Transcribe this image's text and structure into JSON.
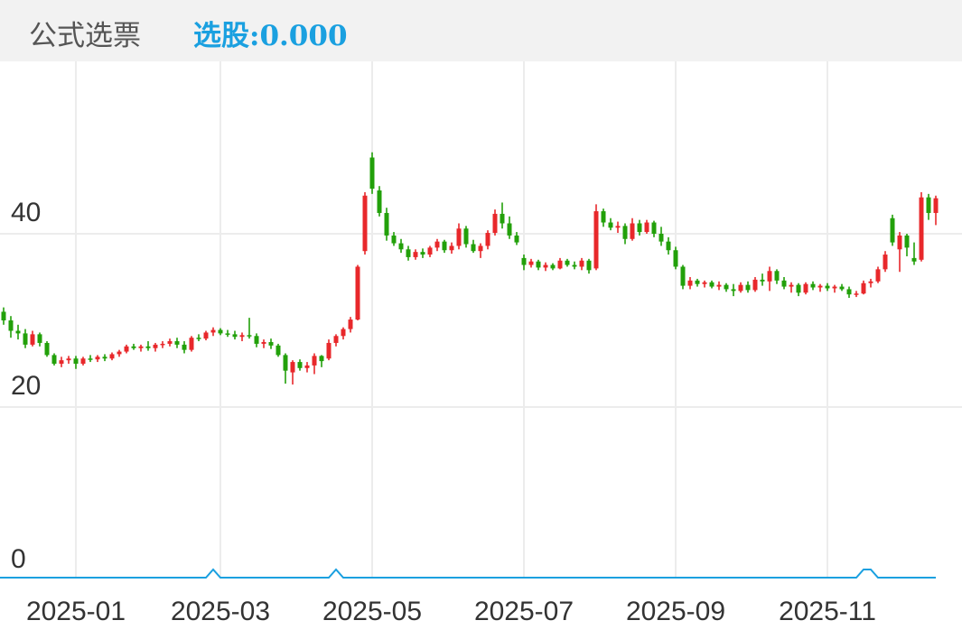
{
  "header": {
    "title": "公式选票",
    "indicator": "选股:0.000"
  },
  "chart_data": {
    "type": "candlestick",
    "up_color": "#e8282b",
    "down_color": "#22a00a",
    "signal_color": "#1aa0e0",
    "ylim": [
      0,
      60
    ],
    "yticks": [
      0,
      20,
      40
    ],
    "grid": true,
    "categories": [
      null,
      null,
      null,
      null,
      null,
      null,
      null,
      null,
      null,
      null,
      "2025-01",
      null,
      null,
      null,
      null,
      null,
      null,
      null,
      null,
      null,
      null,
      null,
      null,
      null,
      null,
      null,
      null,
      null,
      null,
      null,
      "2025-03",
      null,
      null,
      null,
      null,
      null,
      null,
      null,
      null,
      null,
      null,
      null,
      null,
      null,
      null,
      null,
      null,
      null,
      null,
      null,
      null,
      "2025-05",
      null,
      null,
      null,
      null,
      null,
      null,
      null,
      null,
      null,
      null,
      null,
      null,
      null,
      null,
      null,
      null,
      null,
      null,
      null,
      null,
      "2025-07",
      null,
      null,
      null,
      null,
      null,
      null,
      null,
      null,
      null,
      null,
      null,
      null,
      null,
      null,
      null,
      null,
      null,
      null,
      null,
      null,
      "2025-09",
      null,
      null,
      null,
      null,
      null,
      null,
      null,
      null,
      null,
      null,
      null,
      null,
      null,
      null,
      null,
      null,
      null,
      null,
      null,
      null,
      "2025-11",
      null,
      null,
      null,
      null,
      null,
      null,
      null,
      null,
      null,
      null,
      null,
      null,
      null,
      null,
      null
    ],
    "candles": [
      [
        31,
        31.5,
        29.5,
        30
      ],
      [
        30,
        30.5,
        28,
        28.8
      ],
      [
        28.8,
        29.5,
        27.8,
        28.5
      ],
      [
        28.5,
        29,
        26.8,
        27.2
      ],
      [
        27.2,
        28.8,
        27,
        28.4
      ],
      [
        28.4,
        28.6,
        27,
        27.4
      ],
      [
        27.4,
        27.6,
        25.8,
        26
      ],
      [
        26,
        26.2,
        24.8,
        25
      ],
      [
        25,
        25.8,
        24.6,
        25.4
      ],
      [
        25.4,
        25.9,
        25,
        25.6
      ],
      [
        25.6,
        25.9,
        24.4,
        25
      ],
      [
        25,
        25.8,
        24.8,
        25.6
      ],
      [
        25.6,
        26,
        25.2,
        25.5
      ],
      [
        25.5,
        26,
        25.2,
        25.8
      ],
      [
        25.8,
        26.1,
        25.3,
        25.6
      ],
      [
        25.6,
        26.3,
        25.4,
        26.1
      ],
      [
        26.1,
        26.6,
        25.8,
        26.4
      ],
      [
        26.4,
        27.2,
        26.2,
        27
      ],
      [
        27,
        27.3,
        26.6,
        26.8
      ],
      [
        26.8,
        27.2,
        26.4,
        27
      ],
      [
        27,
        27.6,
        26.5,
        26.8
      ],
      [
        26.8,
        27.4,
        26.4,
        27.2
      ],
      [
        27.2,
        27.6,
        26.8,
        27.3
      ],
      [
        27.3,
        27.9,
        27,
        27.6
      ],
      [
        27.6,
        28,
        26.8,
        27.2
      ],
      [
        27.2,
        27.6,
        26.2,
        26.6
      ],
      [
        26.6,
        28.2,
        26.4,
        28
      ],
      [
        28,
        28.4,
        27.6,
        27.9
      ],
      [
        27.9,
        28.8,
        27.7,
        28.6
      ],
      [
        28.6,
        29.2,
        28.2,
        28.9
      ],
      [
        28.9,
        29.1,
        28.3,
        28.5
      ],
      [
        28.5,
        28.9,
        28.1,
        28.4
      ],
      [
        28.4,
        28.8,
        27.8,
        28.1
      ],
      [
        28.1,
        28.6,
        27.6,
        28.3
      ],
      [
        28.3,
        30.3,
        27.9,
        28.2
      ],
      [
        28.2,
        28.5,
        26.9,
        27.3
      ],
      [
        27.3,
        27.8,
        26.8,
        27.5
      ],
      [
        27.5,
        27.9,
        26.7,
        27.1
      ],
      [
        27.1,
        27.3,
        25.8,
        26
      ],
      [
        26,
        26.2,
        22.7,
        24.2
      ],
      [
        24,
        25.4,
        22.6,
        25.2
      ],
      [
        25.2,
        25.5,
        24.2,
        24.5
      ],
      [
        24.5,
        25.2,
        24,
        24.8
      ],
      [
        24.8,
        26.2,
        23.8,
        25.9
      ],
      [
        25.9,
        26,
        24.6,
        25.3
      ],
      [
        25.6,
        27.8,
        25.4,
        27.4
      ],
      [
        27.4,
        28.4,
        27,
        28.2
      ],
      [
        28.2,
        29.2,
        27.8,
        29
      ],
      [
        29,
        30.4,
        28.6,
        30.1
      ],
      [
        30.1,
        36.4,
        30,
        36.2
      ],
      [
        38,
        44.8,
        37.6,
        44.4
      ],
      [
        48.8,
        49.4,
        44.6,
        45.2
      ],
      [
        45,
        45.5,
        42,
        42.4
      ],
      [
        42.4,
        43,
        39.2,
        39.8
      ],
      [
        39.8,
        40.2,
        38.6,
        38.9
      ],
      [
        38.9,
        39.4,
        37.8,
        38.2
      ],
      [
        38.2,
        38.6,
        36.9,
        37.3
      ],
      [
        37.3,
        38.2,
        37,
        37.9
      ],
      [
        37.9,
        38.3,
        37.2,
        37.6
      ],
      [
        37.6,
        38.6,
        37.3,
        38.4
      ],
      [
        38.4,
        39.4,
        38,
        39.1
      ],
      [
        39.1,
        39.3,
        37.8,
        38.1
      ],
      [
        38.1,
        39,
        37.7,
        38.6
      ],
      [
        38.6,
        41.2,
        38.2,
        40.6
      ],
      [
        40.6,
        40.9,
        38.4,
        38.8
      ],
      [
        38.8,
        39.3,
        37.8,
        38
      ],
      [
        38,
        38.9,
        37.2,
        38.6
      ],
      [
        38.6,
        40.4,
        38.2,
        40.1
      ],
      [
        40.1,
        42.8,
        39.8,
        42.3
      ],
      [
        42.3,
        43.6,
        40.6,
        41.2
      ],
      [
        41.2,
        42,
        39.4,
        39.8
      ],
      [
        39.8,
        40.2,
        38.7,
        39
      ],
      [
        37.2,
        37.6,
        35.8,
        36.4
      ],
      [
        36.4,
        37.1,
        36.1,
        36.8
      ],
      [
        36.8,
        37,
        35.8,
        36.1
      ],
      [
        36.1,
        36.7,
        35.7,
        36.4
      ],
      [
        36.4,
        36.6,
        35.8,
        36
      ],
      [
        36,
        37.2,
        35.9,
        36.9
      ],
      [
        36.9,
        37.1,
        36.2,
        36.4
      ],
      [
        36.4,
        36.8,
        35.9,
        36.2
      ],
      [
        36.2,
        37.2,
        35.8,
        36.9
      ],
      [
        36.9,
        37.1,
        35.4,
        35.8
      ],
      [
        36,
        43.4,
        35.8,
        42.6
      ],
      [
        42.6,
        42.9,
        40.8,
        41.3
      ],
      [
        41.3,
        41.8,
        40.4,
        40.7
      ],
      [
        40.7,
        41.4,
        40.1,
        40.9
      ],
      [
        40.9,
        41.2,
        38.8,
        39.4
      ],
      [
        39.4,
        41.8,
        39.2,
        41.2
      ],
      [
        41.2,
        41.6,
        39.8,
        40.2
      ],
      [
        40.2,
        41.6,
        40,
        41.3
      ],
      [
        41.3,
        41.5,
        39.6,
        40
      ],
      [
        40,
        40.8,
        38.6,
        39.1
      ],
      [
        39.1,
        39.6,
        37.6,
        38.1
      ],
      [
        38.1,
        38.5,
        35.9,
        36.2
      ],
      [
        36.2,
        36.4,
        33.6,
        34
      ],
      [
        34,
        35,
        33.6,
        34.6
      ],
      [
        34.6,
        34.8,
        33.9,
        34.2
      ],
      [
        34.2,
        34.6,
        33.8,
        34.4
      ],
      [
        34.4,
        34.6,
        33.7,
        33.9
      ],
      [
        33.9,
        34.5,
        33.5,
        34.1
      ],
      [
        34.1,
        34.3,
        33.3,
        33.6
      ],
      [
        33.6,
        34.2,
        32.8,
        33.4
      ],
      [
        33.4,
        34.4,
        33.2,
        34.1
      ],
      [
        34.1,
        34.5,
        33.2,
        33.5
      ],
      [
        33.5,
        35,
        33.3,
        34.7
      ],
      [
        34.7,
        35.4,
        34,
        34.5
      ],
      [
        34.5,
        36.2,
        33.4,
        35.7
      ],
      [
        35.7,
        35.9,
        34.2,
        34.6
      ],
      [
        34.6,
        35,
        33.6,
        33.9
      ],
      [
        33.9,
        34.4,
        33.2,
        34.1
      ],
      [
        34.1,
        34.3,
        32.8,
        33.2
      ],
      [
        33.2,
        34.4,
        33,
        34.2
      ],
      [
        34.2,
        34.5,
        33.5,
        33.8
      ],
      [
        33.8,
        34.2,
        33.3,
        34
      ],
      [
        34,
        34.3,
        33.4,
        33.7
      ],
      [
        33.7,
        34.1,
        33.2,
        33.9
      ],
      [
        33.9,
        34.2,
        33.4,
        33.6
      ],
      [
        33.6,
        33.9,
        32.6,
        33
      ],
      [
        33,
        33.4,
        32.7,
        33.1
      ],
      [
        33.1,
        34.6,
        33,
        34.3
      ],
      [
        34.3,
        34.8,
        33.8,
        34.5
      ],
      [
        34.5,
        36.2,
        34.3,
        35.9
      ],
      [
        35.9,
        38,
        35.6,
        37.6
      ],
      [
        41.8,
        42.2,
        38.6,
        39
      ],
      [
        38.2,
        40.2,
        35.6,
        39.8
      ],
      [
        39.8,
        40,
        37.4,
        38.4
      ],
      [
        37.2,
        39,
        36.4,
        36.8
      ],
      [
        37,
        44.8,
        36.8,
        44.2
      ],
      [
        44.2,
        44.6,
        41.6,
        42.4
      ],
      [
        42.4,
        44.4,
        41,
        44.1
      ]
    ],
    "signal": [
      0,
      0,
      0,
      0,
      0,
      0,
      0,
      0,
      0,
      0,
      0,
      0,
      0,
      0,
      0,
      0,
      0,
      0,
      0,
      0,
      0,
      0,
      0,
      0,
      0,
      0,
      0,
      0,
      0,
      1,
      0,
      0,
      0,
      0,
      0,
      0,
      0,
      0,
      0,
      0,
      0,
      0,
      0,
      0,
      0,
      0,
      1,
      0,
      0,
      0,
      0,
      0,
      0,
      0,
      0,
      0,
      0,
      0,
      0,
      0,
      0,
      0,
      0,
      0,
      0,
      0,
      0,
      0,
      0,
      0,
      0,
      0,
      0,
      0,
      0,
      0,
      0,
      0,
      0,
      0,
      0,
      0,
      0,
      0,
      0,
      0,
      0,
      0,
      0,
      0,
      0,
      0,
      0,
      0,
      0,
      0,
      0,
      0,
      0,
      0,
      0,
      0,
      0,
      0,
      0,
      0,
      0,
      0,
      0,
      0,
      0,
      0,
      0,
      0,
      0,
      0,
      0,
      0,
      0,
      1,
      1,
      0,
      0,
      0,
      0,
      0,
      0,
      0,
      0,
      0
    ]
  }
}
